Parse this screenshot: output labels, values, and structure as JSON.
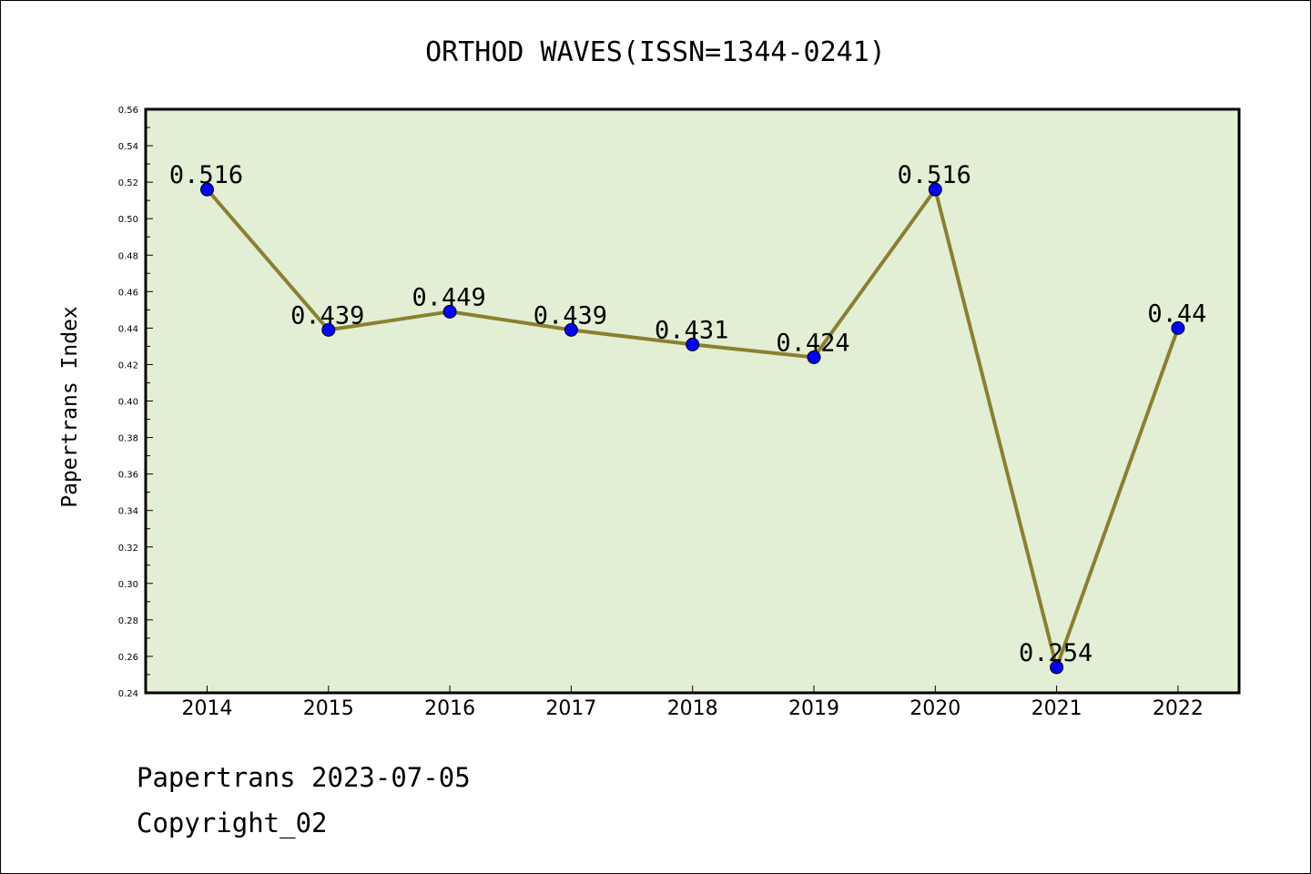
{
  "chart_data": {
    "type": "line",
    "title": "ORTHOD WAVES(ISSN=1344-0241)",
    "xlabel": "",
    "ylabel": "Papertrans Index",
    "categories": [
      "2014",
      "2015",
      "2016",
      "2017",
      "2018",
      "2019",
      "2020",
      "2021",
      "2022"
    ],
    "series": [
      {
        "values": [
          0.516,
          0.439,
          0.449,
          0.439,
          0.431,
          0.424,
          0.516,
          0.254,
          0.44
        ],
        "labels": [
          "0.516",
          "0.439",
          "0.449",
          "0.439",
          "0.431",
          "0.424",
          "0.516",
          "0.254",
          "0.44"
        ]
      }
    ],
    "ylim": [
      0.24,
      0.56
    ],
    "ytick_labels": [
      "0.24",
      "0.26",
      "0.28",
      "0.30",
      "0.32",
      "0.34",
      "0.36",
      "0.38",
      "0.40",
      "0.42",
      "0.44",
      "0.46",
      "0.48",
      "0.50",
      "0.52",
      "0.54",
      "0.56"
    ],
    "grid": false,
    "colors": {
      "plot_background": "#e2efd5",
      "line": "#8b8030",
      "marker": "#0000ff"
    }
  },
  "footer": {
    "line1": "Papertrans 2023-07-05",
    "line2": "Copyright_02"
  }
}
